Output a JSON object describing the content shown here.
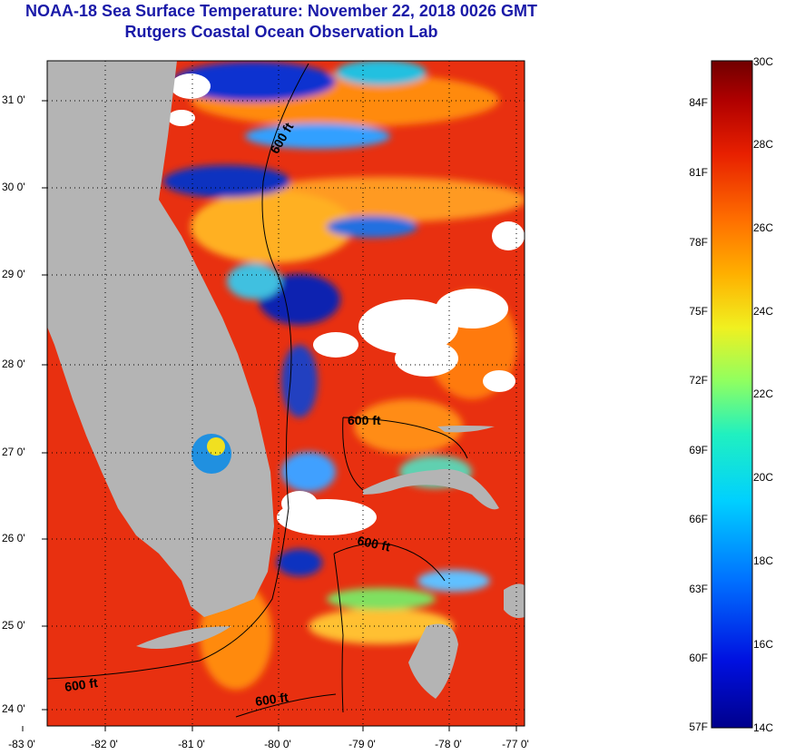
{
  "header": {
    "title": "NOAA-18 Sea Surface Temperature:  November 22, 2018 0026 GMT",
    "subtitle": "Rutgers Coastal Ocean Observation Lab"
  },
  "map": {
    "lat_labels": [
      "31 0'",
      "30 0'",
      "29 0'",
      "28 0'",
      "27 0'",
      "26 0'",
      "25 0'",
      "24 0'"
    ],
    "lon_labels": [
      "-83 0'",
      "-82 0'",
      "-81 0'",
      "-80 0'",
      "-79 0'",
      "-78 0'",
      "-77 0'"
    ],
    "contour_label": "600 ft",
    "colors": {
      "land": "#b4b4b4",
      "cloud": "#ffffff",
      "warm": "#e83010",
      "cool": "#1030c0"
    }
  },
  "colorbar": {
    "fahrenheit_labels": [
      "84F",
      "81F",
      "78F",
      "75F",
      "72F",
      "69F",
      "66F",
      "63F",
      "60F",
      "57F"
    ],
    "celsius_labels": [
      "30C",
      "28C",
      "26C",
      "24C",
      "22C",
      "20C",
      "18C",
      "16C",
      "14C"
    ],
    "range_c": [
      14,
      30
    ]
  }
}
